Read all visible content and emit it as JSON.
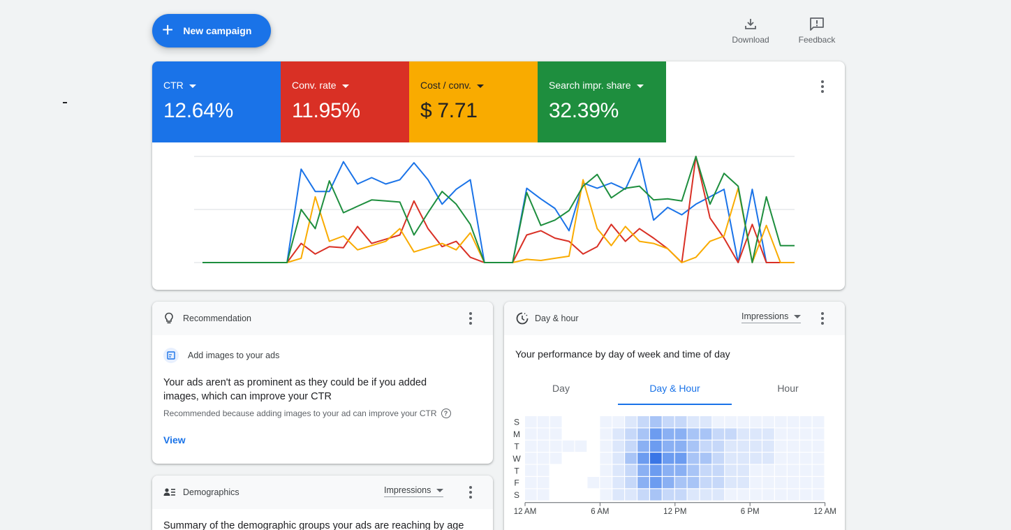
{
  "top": {
    "new_campaign": "New campaign",
    "download": "Download",
    "feedback": "Feedback"
  },
  "metrics": [
    {
      "name": "CTR",
      "value": "12.64%",
      "color": "#1a73e8"
    },
    {
      "name": "Conv. rate",
      "value": "11.95%",
      "color": "#d93025"
    },
    {
      "name": "Cost / conv.",
      "value": "$ 7.71",
      "color": "#f9ab00"
    },
    {
      "name": "Search impr. share",
      "value": "32.39%",
      "color": "#1e8e3e"
    }
  ],
  "chart_data": {
    "type": "line",
    "ylim": [
      0,
      100
    ],
    "grid": true,
    "series": [
      {
        "color": "#1a73e8",
        "values": [
          0,
          0,
          0,
          0,
          0,
          0,
          0,
          88,
          67,
          67,
          95,
          74,
          80,
          74,
          78,
          94,
          78,
          55,
          69,
          78,
          0,
          0,
          0,
          70,
          60,
          51,
          30,
          75,
          70,
          75,
          69,
          98,
          40,
          52,
          45,
          55,
          62,
          69,
          0,
          69,
          0,
          0,
          0
        ]
      },
      {
        "color": "#d93025",
        "values": [
          0,
          0,
          0,
          0,
          0,
          0,
          0,
          18,
          8,
          15,
          14,
          34,
          18,
          22,
          26,
          58,
          32,
          15,
          20,
          5,
          0,
          0,
          0,
          26,
          30,
          23,
          20,
          8,
          15,
          36,
          20,
          32,
          23,
          13,
          0,
          100,
          42,
          23,
          0,
          36,
          0,
          0,
          0
        ]
      },
      {
        "color": "#f9ab00",
        "values": [
          0,
          0,
          0,
          0,
          0,
          0,
          0,
          4,
          62,
          20,
          25,
          12,
          16,
          20,
          32,
          10,
          14,
          18,
          12,
          28,
          0,
          0,
          0,
          3,
          2,
          4,
          6,
          78,
          32,
          16,
          34,
          20,
          18,
          13,
          0,
          5,
          20,
          25,
          70,
          0,
          35,
          0,
          0
        ]
      },
      {
        "color": "#1e8e3e",
        "values": [
          0,
          0,
          0,
          0,
          0,
          0,
          0,
          50,
          32,
          77,
          47,
          53,
          59,
          58,
          57,
          26,
          47,
          67,
          55,
          36,
          0,
          0,
          0,
          66,
          35,
          40,
          49,
          72,
          83,
          61,
          70,
          72,
          59,
          60,
          58,
          100,
          55,
          84,
          72,
          0,
          62,
          16,
          16
        ]
      }
    ]
  },
  "recommendation": {
    "header": "Recommendation",
    "item": "Add images to your ads",
    "text": "Your ads aren't as prominent as they could be if you added images, which can improve your CTR",
    "why": "Recommended because adding images to your ad can improve your CTR",
    "view": "View"
  },
  "demographics": {
    "header": "Demographics",
    "dropdown": "Impressions",
    "text": "Summary of the demographic groups your ads are reaching by age"
  },
  "dayhour": {
    "header": "Day & hour",
    "dropdown": "Impressions",
    "title": "Your performance by day of week and time of day",
    "tabs": [
      "Day",
      "Day & Hour",
      "Hour"
    ],
    "active_tab": 1,
    "days": [
      "S",
      "M",
      "T",
      "W",
      "T",
      "F",
      "S"
    ],
    "hour_labels": [
      "12 AM",
      "6 AM",
      "12 PM",
      "6 PM",
      "12 AM"
    ],
    "intensity": [
      [
        1,
        1,
        1,
        0,
        0,
        0,
        1,
        1,
        2,
        3,
        4,
        3,
        3,
        2,
        2,
        1,
        1,
        1,
        1,
        1,
        1,
        1,
        1,
        1
      ],
      [
        1,
        1,
        1,
        0,
        0,
        0,
        1,
        2,
        3,
        4,
        6,
        5,
        5,
        4,
        4,
        3,
        3,
        2,
        2,
        2,
        1,
        1,
        1,
        1
      ],
      [
        1,
        1,
        1,
        1,
        1,
        0,
        1,
        2,
        3,
        5,
        6,
        5,
        5,
        4,
        3,
        3,
        2,
        2,
        2,
        2,
        1,
        1,
        1,
        1
      ],
      [
        1,
        1,
        1,
        0,
        0,
        0,
        1,
        2,
        4,
        6,
        8,
        6,
        6,
        4,
        4,
        3,
        2,
        2,
        2,
        2,
        1,
        1,
        1,
        1
      ],
      [
        1,
        1,
        0,
        0,
        0,
        0,
        1,
        2,
        3,
        5,
        6,
        5,
        5,
        4,
        3,
        3,
        2,
        2,
        1,
        1,
        1,
        1,
        1,
        1
      ],
      [
        1,
        1,
        0,
        0,
        0,
        1,
        1,
        2,
        3,
        5,
        6,
        5,
        4,
        4,
        3,
        3,
        2,
        2,
        1,
        1,
        1,
        1,
        1,
        1
      ],
      [
        1,
        1,
        0,
        0,
        0,
        0,
        1,
        2,
        2,
        3,
        4,
        3,
        3,
        2,
        2,
        2,
        1,
        1,
        1,
        1,
        1,
        1,
        1,
        1
      ]
    ]
  }
}
